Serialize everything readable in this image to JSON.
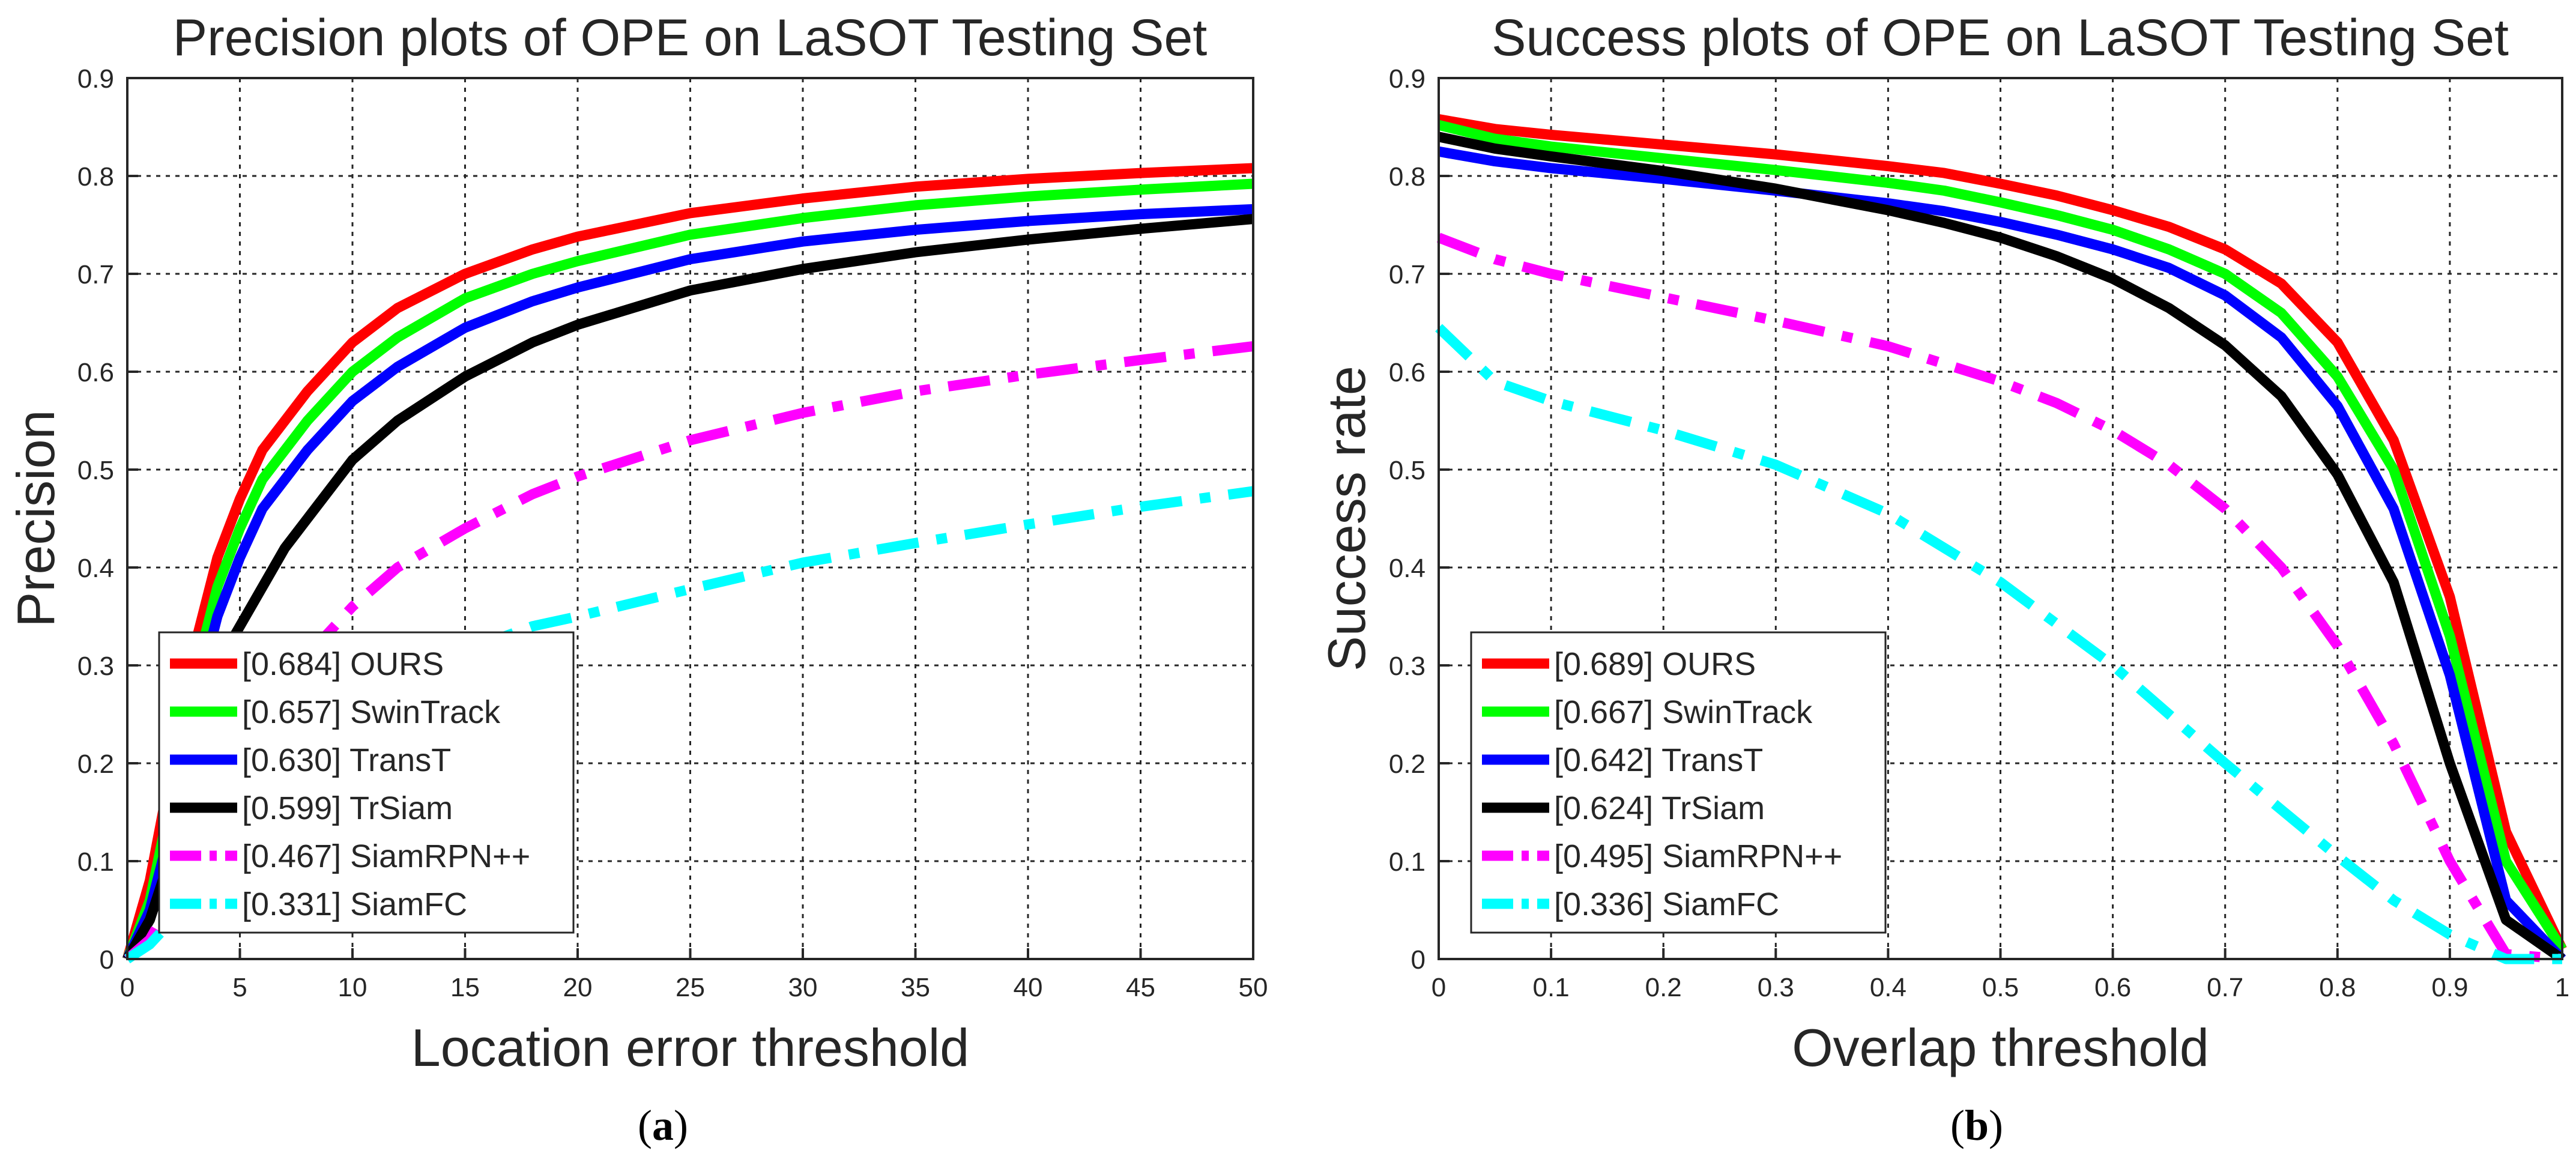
{
  "chart_data": [
    {
      "type": "line",
      "title": "Precision plots of OPE on LaSOT Testing Set",
      "xlabel": "Location error threshold",
      "ylabel": "Precision",
      "caption_label": "a",
      "xlim": [
        0,
        50
      ],
      "ylim": [
        0,
        0.9
      ],
      "xticks": [
        0,
        5,
        10,
        15,
        20,
        25,
        30,
        35,
        40,
        45,
        50
      ],
      "yticks": [
        0,
        0.1,
        0.2,
        0.3,
        0.4,
        0.5,
        0.6,
        0.7,
        0.8,
        0.9
      ],
      "grid": true,
      "legend_position": "bottom-left",
      "series": [
        {
          "name": "OURS",
          "legend_label": "[0.684] OURS",
          "color": "#ff0000",
          "style": "solid",
          "x": [
            0,
            1,
            2,
            3,
            4,
            5,
            6,
            7,
            8,
            10,
            12,
            15,
            18,
            20,
            25,
            30,
            35,
            40,
            45,
            50
          ],
          "y": [
            0,
            0.08,
            0.2,
            0.32,
            0.41,
            0.47,
            0.52,
            0.55,
            0.58,
            0.63,
            0.665,
            0.7,
            0.725,
            0.738,
            0.762,
            0.777,
            0.789,
            0.797,
            0.803,
            0.808
          ]
        },
        {
          "name": "SwinTrack",
          "legend_label": "[0.657] SwinTrack",
          "color": "#00ff00",
          "style": "solid",
          "x": [
            0,
            1,
            2,
            3,
            4,
            5,
            6,
            7,
            8,
            10,
            12,
            15,
            18,
            20,
            25,
            30,
            35,
            40,
            45,
            50
          ],
          "y": [
            0,
            0.06,
            0.17,
            0.29,
            0.38,
            0.44,
            0.49,
            0.52,
            0.55,
            0.6,
            0.635,
            0.675,
            0.7,
            0.713,
            0.74,
            0.757,
            0.77,
            0.779,
            0.786,
            0.792
          ]
        },
        {
          "name": "TransT",
          "legend_label": "[0.630] TransT",
          "color": "#0000ff",
          "style": "solid",
          "x": [
            0,
            1,
            2,
            3,
            4,
            5,
            6,
            7,
            8,
            10,
            12,
            15,
            18,
            20,
            25,
            30,
            35,
            40,
            45,
            50
          ],
          "y": [
            0,
            0.05,
            0.14,
            0.26,
            0.35,
            0.41,
            0.46,
            0.49,
            0.52,
            0.57,
            0.605,
            0.645,
            0.672,
            0.686,
            0.715,
            0.733,
            0.745,
            0.754,
            0.761,
            0.766
          ]
        },
        {
          "name": "TrSiam",
          "legend_label": "[0.599] TrSiam",
          "color": "#000000",
          "style": "solid",
          "x": [
            0,
            1,
            2,
            3,
            4,
            5,
            6,
            7,
            8,
            10,
            12,
            15,
            18,
            20,
            25,
            30,
            35,
            40,
            45,
            50
          ],
          "y": [
            0,
            0.04,
            0.11,
            0.22,
            0.3,
            0.34,
            0.38,
            0.42,
            0.45,
            0.51,
            0.55,
            0.595,
            0.63,
            0.648,
            0.683,
            0.705,
            0.722,
            0.735,
            0.746,
            0.756
          ]
        },
        {
          "name": "SiamRPN++",
          "legend_label": "[0.467] SiamRPN++",
          "color": "#ff00ff",
          "style": "dashdot",
          "x": [
            0,
            1,
            2,
            3,
            4,
            5,
            6,
            7,
            8,
            10,
            12,
            15,
            18,
            20,
            25,
            30,
            35,
            40,
            45,
            50
          ],
          "y": [
            0,
            0.02,
            0.06,
            0.12,
            0.17,
            0.21,
            0.25,
            0.28,
            0.31,
            0.36,
            0.4,
            0.44,
            0.475,
            0.493,
            0.53,
            0.558,
            0.58,
            0.597,
            0.612,
            0.626
          ]
        },
        {
          "name": "SiamFC",
          "legend_label": "[0.331] SiamFC",
          "color": "#00ffff",
          "style": "dashdot",
          "x": [
            0,
            1,
            2,
            3,
            4,
            5,
            6,
            8,
            10,
            12,
            15,
            18,
            20,
            25,
            30,
            35,
            40,
            45,
            50
          ],
          "y": [
            0,
            0.015,
            0.04,
            0.07,
            0.1,
            0.13,
            0.16,
            0.21,
            0.25,
            0.28,
            0.315,
            0.34,
            0.35,
            0.378,
            0.405,
            0.425,
            0.444,
            0.462,
            0.478
          ]
        }
      ]
    },
    {
      "type": "line",
      "title": "Success plots of OPE on LaSOT Testing Set",
      "xlabel": "Overlap threshold",
      "ylabel": "Success rate",
      "caption_label": "b",
      "xlim": [
        0,
        1
      ],
      "ylim": [
        0,
        0.9
      ],
      "xticks": [
        0,
        0.1,
        0.2,
        0.3,
        0.4,
        0.5,
        0.6,
        0.7,
        0.8,
        0.9,
        1
      ],
      "yticks": [
        0,
        0.1,
        0.2,
        0.3,
        0.4,
        0.5,
        0.6,
        0.7,
        0.8,
        0.9
      ],
      "grid": true,
      "legend_position": "bottom-left",
      "series": [
        {
          "name": "OURS",
          "legend_label": "[0.689] OURS",
          "color": "#ff0000",
          "style": "solid",
          "x": [
            0,
            0.05,
            0.1,
            0.2,
            0.3,
            0.4,
            0.45,
            0.5,
            0.55,
            0.6,
            0.65,
            0.7,
            0.75,
            0.8,
            0.85,
            0.9,
            0.95,
            1
          ],
          "y": [
            0.858,
            0.848,
            0.842,
            0.832,
            0.822,
            0.81,
            0.803,
            0.792,
            0.78,
            0.765,
            0.748,
            0.725,
            0.69,
            0.63,
            0.53,
            0.37,
            0.13,
            0.01
          ]
        },
        {
          "name": "SwinTrack",
          "legend_label": "[0.667] SwinTrack",
          "color": "#00ff00",
          "style": "solid",
          "x": [
            0,
            0.05,
            0.1,
            0.2,
            0.3,
            0.4,
            0.45,
            0.5,
            0.55,
            0.6,
            0.65,
            0.7,
            0.75,
            0.8,
            0.85,
            0.9,
            0.95,
            1
          ],
          "y": [
            0.852,
            0.838,
            0.83,
            0.818,
            0.806,
            0.793,
            0.785,
            0.773,
            0.76,
            0.745,
            0.725,
            0.7,
            0.66,
            0.595,
            0.5,
            0.33,
            0.1,
            0.01
          ]
        },
        {
          "name": "TransT",
          "legend_label": "[0.642] TransT",
          "color": "#0000ff",
          "style": "solid",
          "x": [
            0,
            0.05,
            0.1,
            0.2,
            0.3,
            0.4,
            0.45,
            0.5,
            0.55,
            0.6,
            0.65,
            0.7,
            0.75,
            0.8,
            0.85,
            0.9,
            0.95,
            1
          ],
          "y": [
            0.825,
            0.815,
            0.808,
            0.797,
            0.785,
            0.772,
            0.764,
            0.753,
            0.74,
            0.725,
            0.706,
            0.678,
            0.635,
            0.565,
            0.46,
            0.29,
            0.06,
            0.0
          ]
        },
        {
          "name": "TrSiam",
          "legend_label": "[0.624] TrSiam",
          "color": "#000000",
          "style": "solid",
          "x": [
            0,
            0.05,
            0.1,
            0.2,
            0.3,
            0.4,
            0.45,
            0.5,
            0.55,
            0.6,
            0.65,
            0.7,
            0.75,
            0.8,
            0.85,
            0.9,
            0.95,
            1
          ],
          "y": [
            0.84,
            0.828,
            0.82,
            0.805,
            0.787,
            0.765,
            0.752,
            0.737,
            0.718,
            0.695,
            0.665,
            0.627,
            0.575,
            0.495,
            0.385,
            0.2,
            0.04,
            0.0
          ]
        },
        {
          "name": "SiamRPN++",
          "legend_label": "[0.495] SiamRPN++",
          "color": "#ff00ff",
          "style": "dashdot",
          "x": [
            0,
            0.05,
            0.1,
            0.2,
            0.3,
            0.4,
            0.5,
            0.55,
            0.6,
            0.65,
            0.7,
            0.75,
            0.8,
            0.85,
            0.9,
            0.95,
            1
          ],
          "y": [
            0.737,
            0.715,
            0.7,
            0.676,
            0.652,
            0.626,
            0.59,
            0.568,
            0.54,
            0.505,
            0.46,
            0.4,
            0.32,
            0.22,
            0.1,
            0.005,
            0.0
          ]
        },
        {
          "name": "SiamFC",
          "legend_label": "[0.336] SiamFC",
          "color": "#00ffff",
          "style": "dashdot",
          "x": [
            0,
            0.05,
            0.1,
            0.2,
            0.3,
            0.4,
            0.5,
            0.6,
            0.7,
            0.8,
            0.85,
            0.9,
            0.95,
            1
          ],
          "y": [
            0.645,
            0.59,
            0.57,
            0.54,
            0.505,
            0.455,
            0.385,
            0.3,
            0.2,
            0.105,
            0.06,
            0.025,
            0.0,
            0.0
          ]
        }
      ]
    }
  ]
}
